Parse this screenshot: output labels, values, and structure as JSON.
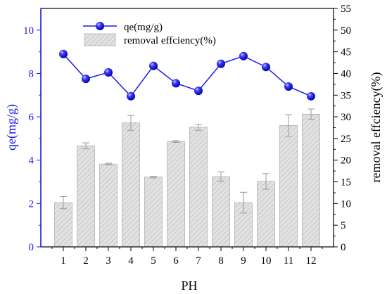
{
  "chart_data": {
    "type": "bar",
    "xlabel": "PH",
    "ylabel": "qe(mg/g)",
    "ylabel_right": "removal effciency(%)",
    "categories": [
      "1",
      "2",
      "3",
      "4",
      "5",
      "6",
      "7",
      "8",
      "9",
      "10",
      "11",
      "12"
    ],
    "x_ticks": [
      "1",
      "2",
      "3",
      "4",
      "5",
      "6",
      "7",
      "8",
      "9",
      "10",
      "11",
      "12"
    ],
    "ylim": [
      0,
      11
    ],
    "ylim_right": [
      0,
      55
    ],
    "y_ticks": [
      "0",
      "2",
      "4",
      "6",
      "8",
      "10"
    ],
    "y_ticks_right": [
      "0",
      "5",
      "10",
      "15",
      "20",
      "25",
      "30",
      "35",
      "40",
      "45",
      "50",
      "55"
    ],
    "legend_position": "top-left",
    "series": [
      {
        "name": "qe(mg/g)",
        "type": "line",
        "axis": "left",
        "color": "#1a1aee",
        "values": [
          8.9,
          7.75,
          8.05,
          6.95,
          8.35,
          7.55,
          7.2,
          8.45,
          8.8,
          8.3,
          7.4,
          6.95
        ]
      },
      {
        "name": "removal effciency(%)",
        "type": "bar",
        "axis": "right",
        "color": "#e0e0e0",
        "pattern": "diagonal-hatch",
        "values": [
          10.2,
          23.3,
          19.1,
          28.6,
          16.1,
          24.3,
          27.6,
          16.2,
          10.2,
          15.1,
          28.0,
          30.6
        ],
        "errors": [
          1.4,
          0.7,
          0.2,
          1.7,
          0.2,
          0.2,
          0.7,
          1.1,
          2.4,
          1.8,
          2.5,
          1.2
        ]
      }
    ]
  }
}
